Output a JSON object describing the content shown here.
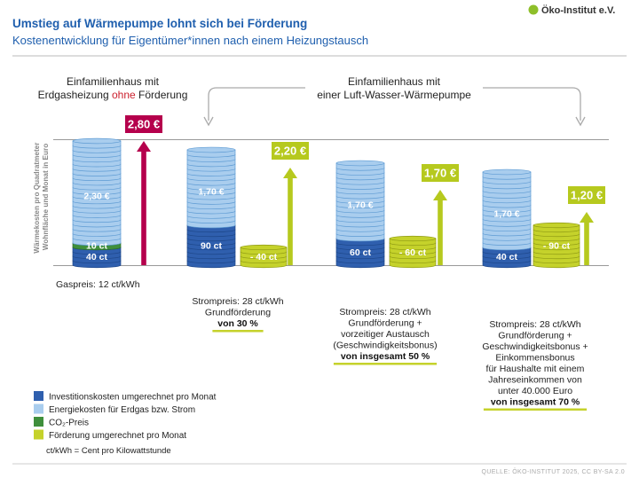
{
  "header": {
    "title": "Umstieg auf Wärmepumpe lohnt sich bei Förderung",
    "subtitle": "Kostenentwicklung für Eigentümer*innen nach einem Heizungstausch",
    "logo_text": "Öko-Institut e.V."
  },
  "groups": {
    "gas_line1": "Einfamilienhaus mit",
    "gas_line2_a": "Erdgasheizung",
    "gas_line2_b": "ohne",
    "gas_line2_c": "Förderung",
    "hp_line1": "Einfamilienhaus mit",
    "hp_line2": "einer Luft-Wasser-Wärmepumpe"
  },
  "captions": {
    "c1": [
      "Gaspreis: 12 ct/kWh"
    ],
    "c2": [
      "Strompreis: 28 ct/kWh",
      "Grundförderung"
    ],
    "c2_hl": "von 30 %",
    "c3": [
      "Strompreis: 28 ct/kWh",
      "Grundförderung +",
      "vorzeitiger Austausch",
      "(Geschwindigkeitsbonus)"
    ],
    "c3_hl": "von insgesamt 50 %",
    "c4": [
      "Strompreis: 28 ct/kWh",
      "Grundförderung +",
      "Geschwindigkeitsbonus +",
      "Einkommensbonus",
      "für Haushalte mit einem",
      "Jahreseinkommen von",
      "unter 40.000 Euro"
    ],
    "c4_hl": "von insgesamt 70 %"
  },
  "legend": {
    "items": [
      {
        "label": "Investitionskosten umgerechnet pro Monat",
        "color": "#2f5fae"
      },
      {
        "label": "Energiekosten für Erdgas bzw. Strom",
        "color": "#a9cdee"
      },
      {
        "label": "CO₂-Preis",
        "color": "#3f8f3c"
      },
      {
        "label": "Förderung umgerechnet pro Monat",
        "color": "#c5d22b"
      }
    ],
    "note": "ct/kWh = Cent pro Kilowattstunde"
  },
  "source": "QUELLE: ÖKO-INSTITUT 2025, CC BY-SA 2.0",
  "chart_data": {
    "type": "bar",
    "ylabel": "Wärmekosten pro Quadratmeter Wohnfläche und Monat in Euro",
    "categories": [
      "Gaspreis: 12 ct/kWh",
      "Grundförderung von 30 %",
      "von insgesamt 50 %",
      "von insgesamt 70 %"
    ],
    "series": [
      {
        "name": "Investitionskosten umgerechnet pro Monat",
        "values": [
          0.4,
          0.9,
          0.6,
          0.4
        ],
        "labels": [
          "40 ct",
          "90 ct",
          "60 ct",
          "40 ct"
        ]
      },
      {
        "name": "CO₂-Preis",
        "values": [
          0.1,
          0,
          0,
          0
        ],
        "labels": [
          "10 ct",
          "",
          "",
          ""
        ]
      },
      {
        "name": "Energiekosten für Erdgas bzw. Strom",
        "values": [
          2.3,
          1.7,
          1.7,
          1.7
        ],
        "labels": [
          "2,30 €",
          "1,70 €",
          "1,70 €",
          "1,70 €"
        ]
      },
      {
        "name": "Förderung umgerechnet pro Monat",
        "values": [
          0,
          -0.4,
          -0.6,
          -0.9
        ],
        "labels": [
          "",
          "- 40 ct",
          "- 60 ct",
          "- 90 ct"
        ]
      }
    ],
    "totals": [
      2.8,
      2.2,
      1.7,
      1.2
    ],
    "total_labels": [
      "2,80 €",
      "2,20 €",
      "1,70 €",
      "1,20 €"
    ],
    "colors": {
      "investment": "#2f5fae",
      "energy": "#a9cdee",
      "co2": "#3f8f3c",
      "subsidy": "#c5d22b",
      "gas_total": "#b5004c",
      "hp_total": "#b6c91e",
      "title": "#1f5fae",
      "highlight": "#cc1f2d"
    }
  }
}
